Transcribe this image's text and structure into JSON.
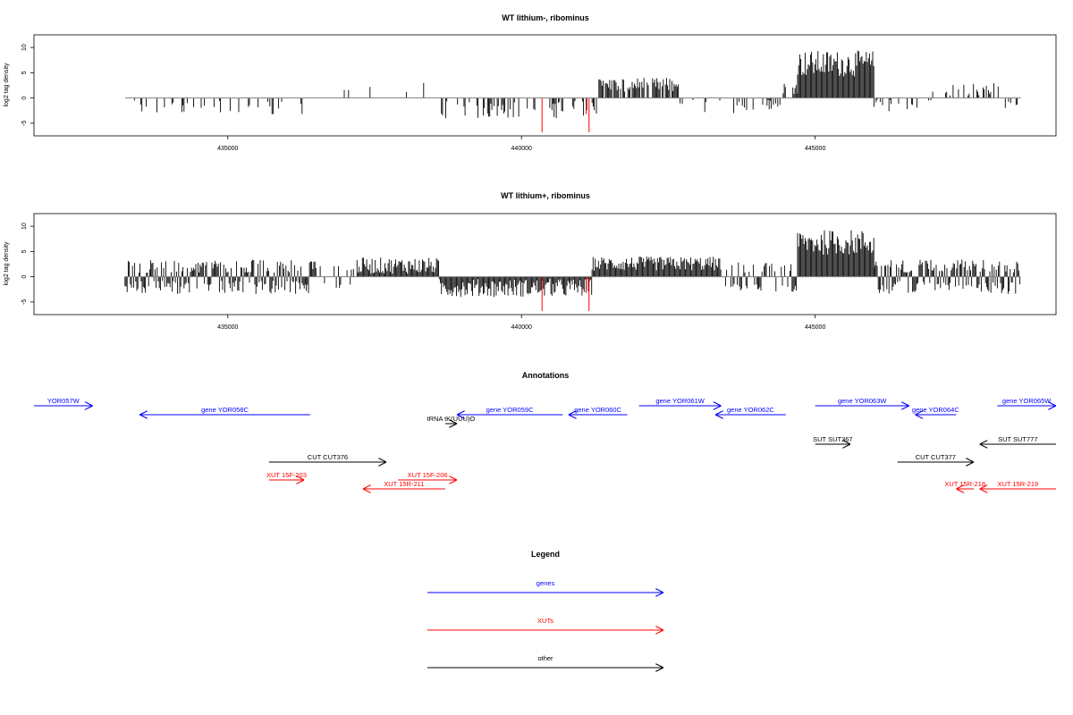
{
  "chart_data": [
    {
      "type": "bar",
      "title": "WT lithium-, ribominus",
      "xlabel": "",
      "ylabel": "log2 tag density",
      "xlim": [
        431700,
        449100
      ],
      "ylim": [
        -7.5,
        12.5
      ],
      "x_ticks": [
        435000,
        440000,
        445000
      ],
      "y_ticks": [
        -5,
        0,
        5,
        10
      ],
      "highlight_color": "#ff0000",
      "bar_color": "#000000",
      "density_regions": [
        {
          "from": 433300,
          "to": 434200,
          "mean": -1.6,
          "spread": 1.8,
          "density": 0.25
        },
        {
          "from": 434200,
          "to": 436400,
          "mean": -2.0,
          "spread": 1.6,
          "density": 0.22
        },
        {
          "from": 436800,
          "to": 438600,
          "mean": 1.8,
          "spread": 1.2,
          "density": 0.05
        },
        {
          "from": 438600,
          "to": 440800,
          "mean": -2.3,
          "spread": 1.7,
          "density": 0.35
        },
        {
          "from": 440800,
          "to": 441300,
          "mean": -2.0,
          "spread": 1.5,
          "density": 0.3
        },
        {
          "from": 441300,
          "to": 442700,
          "mean": 2.6,
          "spread": 1.4,
          "density": 0.8
        },
        {
          "from": 442700,
          "to": 444400,
          "mean": -1.6,
          "spread": 1.4,
          "density": 0.18
        },
        {
          "from": 444400,
          "to": 444700,
          "mean": 2.0,
          "spread": 1.2,
          "density": 0.4
        },
        {
          "from": 444700,
          "to": 446000,
          "mean": 6.8,
          "spread": 2.6,
          "density": 1.0
        },
        {
          "from": 446000,
          "to": 447000,
          "mean": -1.5,
          "spread": 1.2,
          "density": 0.35
        },
        {
          "from": 447000,
          "to": 448200,
          "mean": 1.6,
          "spread": 1.4,
          "density": 0.3
        },
        {
          "from": 448200,
          "to": 448500,
          "mean": -1.2,
          "spread": 1.0,
          "density": 0.3
        }
      ],
      "highlights": [
        {
          "x": 440350,
          "y": -6.8
        },
        {
          "x": 441150,
          "y": -6.8
        },
        {
          "x": 441100,
          "y": -3.2
        }
      ]
    },
    {
      "type": "bar",
      "title": "WT lithium+, ribominus",
      "xlabel": "",
      "ylabel": "log2 tag density",
      "xlim": [
        431700,
        449100
      ],
      "ylim": [
        -7.5,
        12.5
      ],
      "x_ticks": [
        435000,
        440000,
        445000
      ],
      "y_ticks": [
        -5,
        0,
        5,
        10
      ],
      "highlight_color": "#ff0000",
      "bar_color": "#000000",
      "density_regions": [
        {
          "from": 433250,
          "to": 436500,
          "mean": 0.0,
          "spread": 2.6,
          "density": 1.0
        },
        {
          "from": 436500,
          "to": 437200,
          "mean": 0.0,
          "spread": 1.6,
          "density": 0.35
        },
        {
          "from": 437200,
          "to": 438600,
          "mean": 2.2,
          "spread": 1.6,
          "density": 1.0
        },
        {
          "from": 438600,
          "to": 441200,
          "mean": -2.2,
          "spread": 1.8,
          "density": 1.0
        },
        {
          "from": 441200,
          "to": 443400,
          "mean": 2.6,
          "spread": 1.4,
          "density": 1.0
        },
        {
          "from": 443400,
          "to": 444700,
          "mean": 0.0,
          "spread": 2.2,
          "density": 0.7
        },
        {
          "from": 444700,
          "to": 446000,
          "mean": 6.8,
          "spread": 2.5,
          "density": 1.0
        },
        {
          "from": 446000,
          "to": 448500,
          "mean": 0.0,
          "spread": 2.6,
          "density": 1.0
        }
      ],
      "highlights": [
        {
          "x": 440350,
          "y": -6.8
        },
        {
          "x": 441150,
          "y": -6.8
        },
        {
          "x": 441100,
          "y": -3.2
        }
      ]
    }
  ],
  "annotations": {
    "title": "Annotations",
    "features": [
      {
        "label": "YOR057W",
        "category": "genes",
        "strand": "+",
        "start": 431700,
        "end": 432700,
        "row": 0
      },
      {
        "label": "gene YOR058C",
        "category": "genes",
        "strand": "-",
        "start": 433500,
        "end": 436400,
        "row": 1
      },
      {
        "label": "tRNA tK(UUU)O",
        "category": "other",
        "strand": "+",
        "start": 438700,
        "end": 438900,
        "row": 2
      },
      {
        "label": "gene YOR059C",
        "category": "genes",
        "strand": "-",
        "start": 438900,
        "end": 440700,
        "row": 1
      },
      {
        "label": "gene YOR060C",
        "category": "genes",
        "strand": "-",
        "start": 440800,
        "end": 441800,
        "row": 1
      },
      {
        "label": "gene YOR061W",
        "category": "genes",
        "strand": "+",
        "start": 442000,
        "end": 443400,
        "row": 0
      },
      {
        "label": "gene YOR062C",
        "category": "genes",
        "strand": "-",
        "start": 443300,
        "end": 444500,
        "row": 1
      },
      {
        "label": "gene YOR063W",
        "category": "genes",
        "strand": "+",
        "start": 445000,
        "end": 446600,
        "row": 0
      },
      {
        "label": "gene YOR064C",
        "category": "genes",
        "strand": "-",
        "start": 446700,
        "end": 447400,
        "row": 1
      },
      {
        "label": "gene YOR065W",
        "category": "genes",
        "strand": "+",
        "start": 448100,
        "end": 449100,
        "row": 0
      },
      {
        "label": "SUT SUT367",
        "category": "other",
        "strand": "+",
        "start": 445000,
        "end": 445600,
        "row": 3
      },
      {
        "label": "CUT CUT376",
        "category": "other",
        "strand": "+",
        "start": 435700,
        "end": 437700,
        "row": 4
      },
      {
        "label": "CUT CUT377",
        "category": "other",
        "strand": "+",
        "start": 446400,
        "end": 447700,
        "row": 4
      },
      {
        "label": "SUT SUT777",
        "category": "other",
        "strand": "-",
        "start": 447800,
        "end": 449100,
        "row": 3
      },
      {
        "label": "XUT 15F-203",
        "category": "XUTs",
        "strand": "+",
        "start": 435700,
        "end": 436300,
        "row": 5
      },
      {
        "label": "XUT 15F-206",
        "category": "XUTs",
        "strand": "+",
        "start": 437900,
        "end": 438900,
        "row": 5
      },
      {
        "label": "XUT 15R-211",
        "category": "XUTs",
        "strand": "-",
        "start": 437300,
        "end": 438700,
        "row": 6
      },
      {
        "label": "XUT 15R-218",
        "category": "XUTs",
        "strand": "-",
        "start": 447400,
        "end": 447700,
        "row": 6
      },
      {
        "label": "XUT 15R-219",
        "category": "XUTs",
        "strand": "-",
        "start": 447800,
        "end": 449100,
        "row": 6
      }
    ]
  },
  "legend": {
    "title": "Legend",
    "items": [
      {
        "label": "genes",
        "color": "#0000ff"
      },
      {
        "label": "XUTs",
        "color": "#ff0000"
      },
      {
        "label": "other",
        "color": "#000000"
      }
    ]
  },
  "colors": {
    "genes": "#0000ff",
    "XUTs": "#ff0000",
    "other": "#000000",
    "axis": "#000000",
    "baseline": "#808080"
  }
}
